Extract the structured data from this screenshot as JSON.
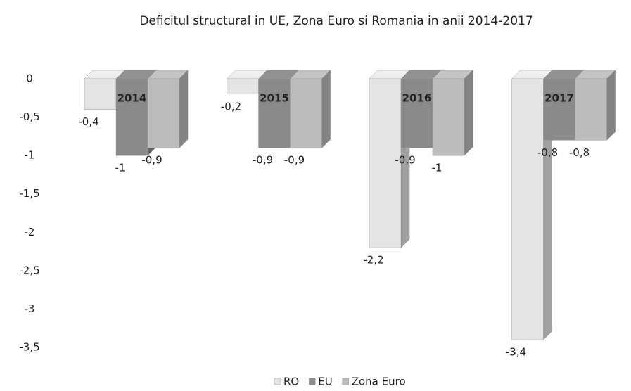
{
  "chart_data": {
    "type": "bar3d",
    "title": "Deficitul structural in UE, Zona Euro si Romania  in anii 2014-2017",
    "categories": [
      "2014",
      "2015",
      "2016",
      "2017"
    ],
    "series": [
      {
        "name": "RO",
        "color": "#e4e4e4",
        "values": [
          -0.4,
          -0.2,
          -2.2,
          -3.4
        ],
        "value_labels": [
          "-0,4",
          "-0,2",
          "-2,2",
          "-3,4"
        ]
      },
      {
        "name": "EU",
        "color": "#8a8a8a",
        "values": [
          -1,
          -0.9,
          -0.9,
          -0.8
        ],
        "value_labels": [
          "-1",
          "-0,9",
          "-0,9",
          "-0,8"
        ]
      },
      {
        "name": "Zona Euro",
        "color": "#bcbcbc",
        "values": [
          -0.9,
          -0.9,
          -1,
          -0.8
        ],
        "value_labels": [
          "-0,9",
          "-0,9",
          "-1",
          "-0,8"
        ]
      }
    ],
    "ylim": [
      -3.5,
      0
    ],
    "yticks": [
      0,
      {
        "value": -0.5,
        "label": "-0,5"
      },
      -1,
      {
        "value": -1.5,
        "label": "-1,5"
      },
      -2,
      {
        "value": -2.5,
        "label": "-2,5"
      },
      -3,
      {
        "value": -3.5,
        "label": "-3,5"
      }
    ],
    "grid": false,
    "legend": "bottom"
  }
}
